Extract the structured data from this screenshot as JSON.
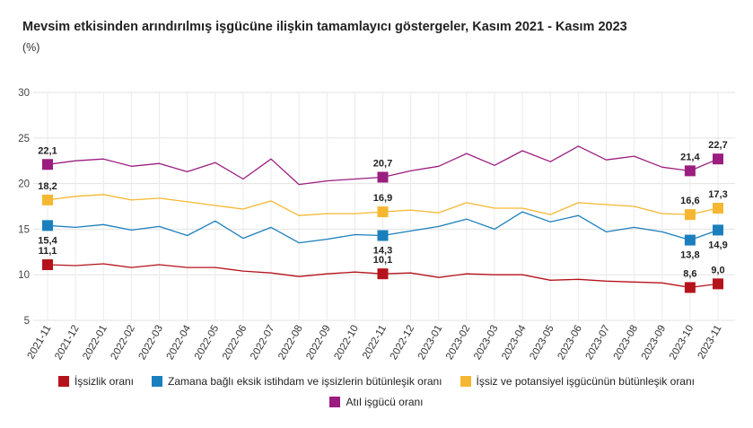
{
  "title": "Mevsim etkisinden arındırılmış işgücüne ilişkin tamamlayıcı göstergeler, Kasım 2021 - Kasım 2023",
  "unit": "(%)",
  "chart_data": {
    "type": "line",
    "ylim": [
      5,
      30
    ],
    "yticks": [
      "5",
      "10",
      "15",
      "20",
      "25",
      "30"
    ],
    "grid": true,
    "legend_position": "bottom",
    "x": [
      "2021-11",
      "2021-12",
      "2022-01",
      "2022-02",
      "2022-03",
      "2022-04",
      "2022-05",
      "2022-06",
      "2022-07",
      "2022-08",
      "2022-09",
      "2022-10",
      "2022-11",
      "2022-12",
      "2023-01",
      "2023-02",
      "2023-03",
      "2023-04",
      "2023-05",
      "2023-06",
      "2023-07",
      "2023-08",
      "2023-09",
      "2023-10",
      "2023-11"
    ],
    "marker_indices": [
      0,
      12,
      23,
      24
    ],
    "series": [
      {
        "name": "İşsizlik oranı",
        "color": "#b5121b",
        "values": [
          11.1,
          11.0,
          11.2,
          10.8,
          11.1,
          10.8,
          10.8,
          10.4,
          10.2,
          9.8,
          10.1,
          10.3,
          10.1,
          10.2,
          9.7,
          10.1,
          10.0,
          10.0,
          9.4,
          9.5,
          9.3,
          9.2,
          9.1,
          8.6,
          9.0
        ],
        "labels": [
          "11,1",
          "10,1",
          "8,6",
          "9,0"
        ],
        "label_pos": [
          "above",
          "above",
          "above",
          "above"
        ]
      },
      {
        "name": "Zamana bağlı eksik istihdam ve işsizlerin bütünleşik oranı",
        "color": "#1b7fbd",
        "values": [
          15.4,
          15.2,
          15.5,
          14.9,
          15.3,
          14.3,
          15.9,
          14.0,
          15.2,
          13.5,
          13.9,
          14.4,
          14.3,
          14.8,
          15.3,
          16.1,
          15.0,
          16.9,
          15.8,
          16.5,
          14.7,
          15.2,
          14.7,
          13.8,
          14.9
        ],
        "labels": [
          "15,4",
          "14,3",
          "13,8",
          "14,9"
        ],
        "label_pos": [
          "below",
          "below",
          "below",
          "below"
        ]
      },
      {
        "name": "İşsiz ve potansiyel işgücünün bütünleşik oranı",
        "color": "#f5b731",
        "values": [
          18.2,
          18.6,
          18.8,
          18.2,
          18.4,
          18.0,
          17.6,
          17.2,
          18.1,
          16.5,
          16.7,
          16.7,
          16.9,
          17.1,
          16.8,
          17.9,
          17.3,
          17.3,
          16.6,
          17.9,
          17.7,
          17.5,
          16.7,
          16.6,
          17.3
        ],
        "labels": [
          "18,2",
          "16,9",
          "16,6",
          "17,3"
        ],
        "label_pos": [
          "above",
          "above",
          "above",
          "above"
        ]
      },
      {
        "name": "Atıl işgücü oranı",
        "color": "#9b1d80",
        "values": [
          22.1,
          22.5,
          22.7,
          21.9,
          22.2,
          21.3,
          22.3,
          20.5,
          22.7,
          19.9,
          20.3,
          20.5,
          20.7,
          21.4,
          21.9,
          23.3,
          22.0,
          23.6,
          22.4,
          24.1,
          22.6,
          23.0,
          21.8,
          21.4,
          22.7
        ],
        "labels": [
          "22,1",
          "20,7",
          "21,4",
          "22,7"
        ],
        "label_pos": [
          "above",
          "above",
          "above",
          "above"
        ]
      }
    ]
  }
}
